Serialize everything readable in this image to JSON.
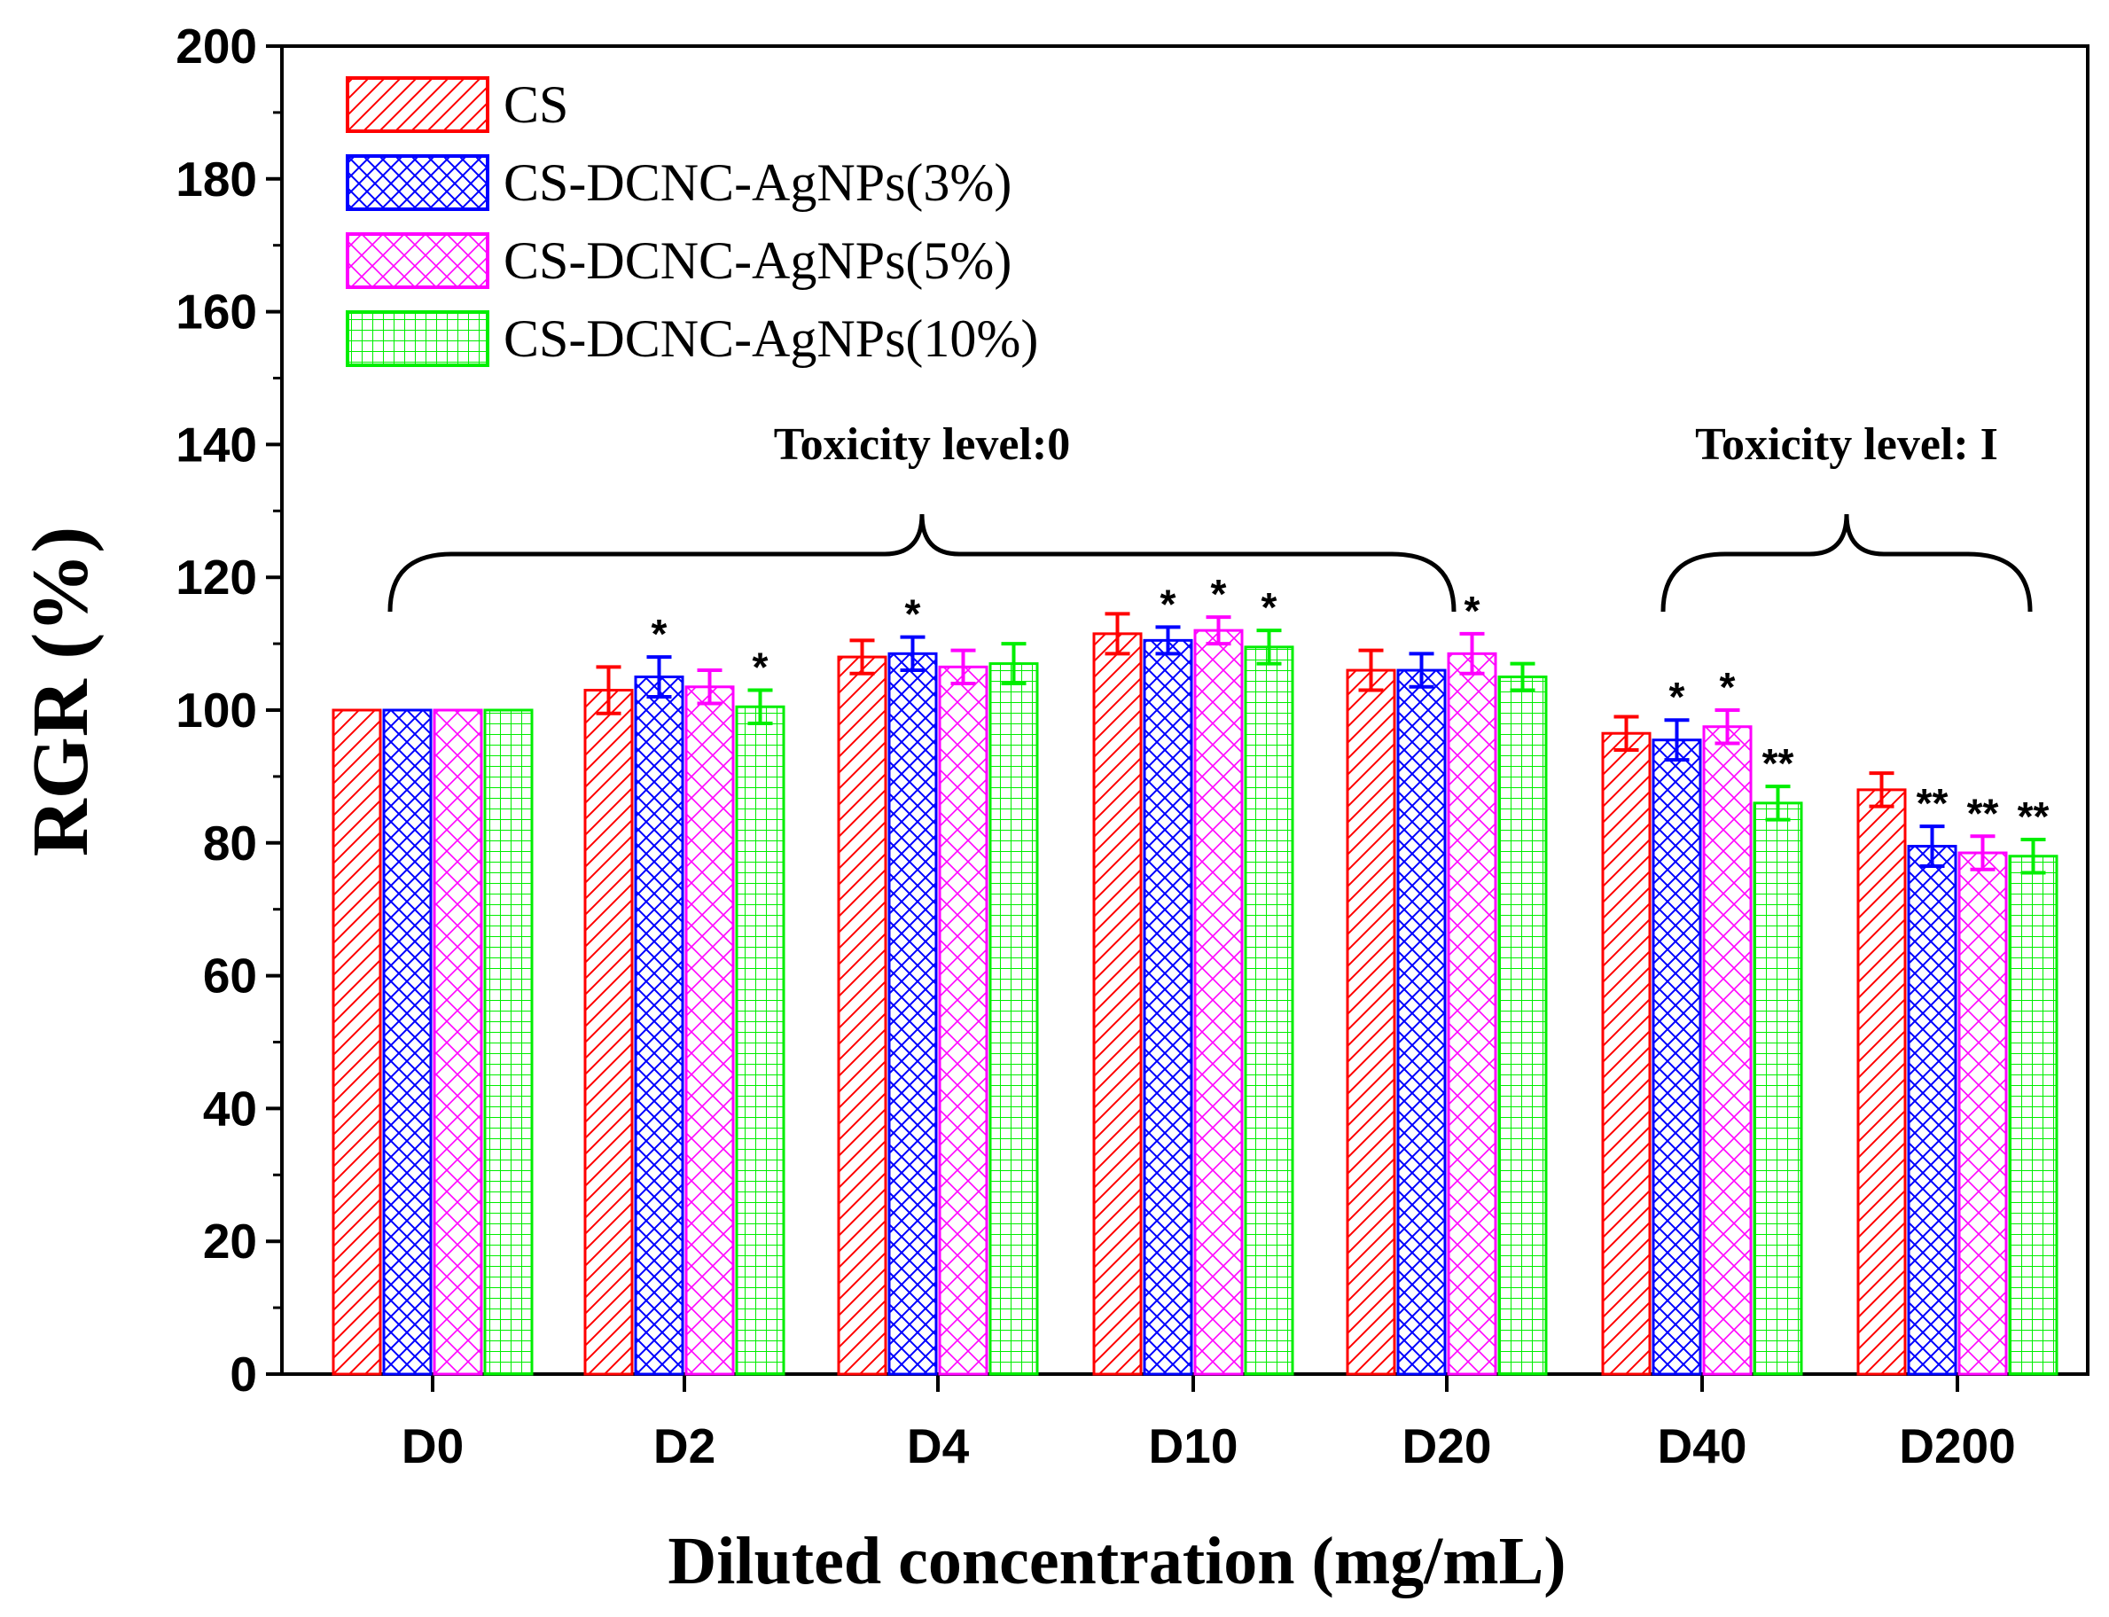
{
  "chart_data": {
    "type": "bar",
    "title": "",
    "xlabel": "Diluted concentration (mg/mL)",
    "ylabel": "RGR (%)",
    "ylim": [
      0,
      200
    ],
    "yticks": [
      "0",
      "20",
      "40",
      "60",
      "80",
      "100",
      "120",
      "140",
      "160",
      "180",
      "200"
    ],
    "categories": [
      "D0",
      "D2",
      "D4",
      "D10",
      "D20",
      "D40",
      "D200"
    ],
    "legend_position": "top-left",
    "series": [
      {
        "name": "CS",
        "color": "#ff0000",
        "pattern": "diagonal",
        "values": [
          100,
          103,
          108,
          111.5,
          106,
          96.5,
          88
        ],
        "errors": [
          0,
          3.5,
          2.5,
          3,
          3,
          2.5,
          2.5
        ],
        "marks": [
          "",
          "",
          "",
          "",
          "",
          "",
          ""
        ]
      },
      {
        "name": "CS-DCNC-AgNPs(3%)",
        "color": "#0000ff",
        "pattern": "crosshatch",
        "values": [
          100,
          105,
          108.5,
          110.5,
          106,
          95.5,
          79.5
        ],
        "errors": [
          0,
          3,
          2.5,
          2,
          2.5,
          3,
          3
        ],
        "marks": [
          "",
          "*",
          "*",
          "*",
          "",
          "*",
          "**"
        ]
      },
      {
        "name": "CS-DCNC-AgNPs(5%)",
        "color": "#ff00ff",
        "pattern": "crosshatch-light",
        "values": [
          100,
          103.5,
          106.5,
          112,
          108.5,
          97.5,
          78.5
        ],
        "errors": [
          0,
          2.5,
          2.5,
          2,
          3,
          2.5,
          2.5
        ],
        "marks": [
          "",
          "",
          "",
          "*",
          "*",
          "*",
          "**"
        ]
      },
      {
        "name": "CS-DCNC-AgNPs(10%)",
        "color": "#00ee00",
        "pattern": "grid",
        "values": [
          100,
          100.5,
          107,
          109.5,
          105,
          86,
          78
        ],
        "errors": [
          0,
          2.5,
          3,
          2.5,
          2,
          2.5,
          2.5
        ],
        "marks": [
          "",
          "*",
          "",
          "*",
          "",
          "**",
          "**"
        ]
      }
    ],
    "annotations": [
      {
        "text": "Toxicity level:0",
        "from_category": "D0",
        "to_category": "D20"
      },
      {
        "text": "Toxicity level: I",
        "from_category": "D40",
        "to_category": "D200"
      }
    ]
  }
}
